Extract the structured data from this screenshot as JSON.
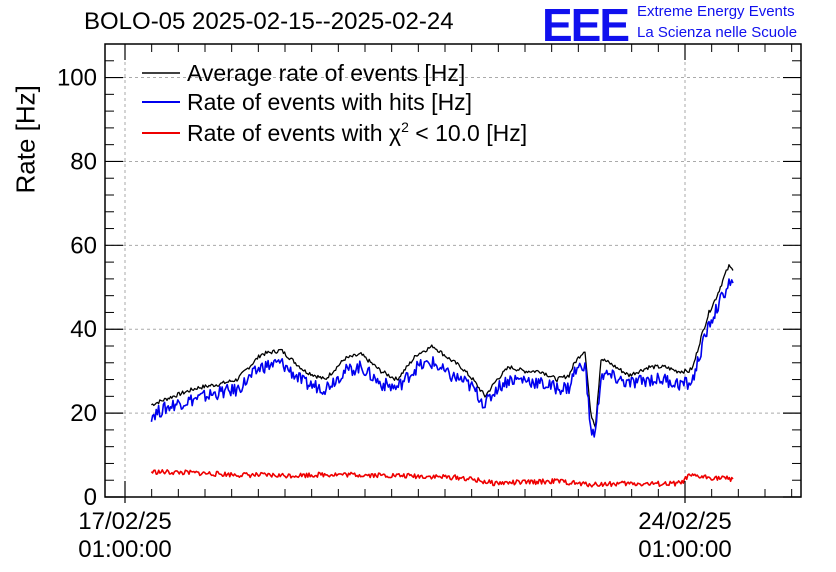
{
  "title": "BOLO-05 2025-02-15--2025-02-24",
  "logo": {
    "mark": "EEE",
    "line1": "Extreme Energy Events",
    "line2": "La Scienza nelle Scuole"
  },
  "chart_data": {
    "type": "line",
    "ylabel": "Rate [Hz]",
    "xlabel": "",
    "ylim": [
      0,
      108
    ],
    "xlim": [
      -0.25,
      8.45
    ],
    "grid": true,
    "legend_position": "top-left",
    "x_tick_labels": [
      {
        "x": 0,
        "line1": "17/02/25",
        "line2": "01:00:00"
      },
      {
        "x": 7,
        "line1": "24/02/25",
        "line2": "01:00:00"
      }
    ],
    "y_ticks": [
      0,
      20,
      40,
      60,
      80,
      100
    ],
    "legend": [
      {
        "text": "Average rate of events [Hz]",
        "color": "#000000"
      },
      {
        "text": "Rate of events with hits [Hz]",
        "color": "#0000ee"
      },
      {
        "text_before": "Rate of events with χ",
        "sup": "2",
        "text_after": " < 10.0 [Hz]",
        "color": "#ee0000"
      }
    ],
    "series": [
      {
        "color": "#000000",
        "x": [
          0.33,
          0.6,
          0.9,
          1.2,
          1.4,
          1.7,
          1.95,
          2.25,
          2.5,
          2.75,
          2.95,
          3.2,
          3.4,
          3.65,
          3.85,
          4.05,
          4.2,
          4.35,
          4.5,
          4.65,
          4.8,
          5.0,
          5.2,
          5.4,
          5.55,
          5.62,
          5.7,
          5.75,
          5.82,
          5.88,
          5.95,
          6.05,
          6.3,
          6.55,
          6.75,
          6.9,
          7.0,
          7.05,
          7.1,
          7.2,
          7.3,
          7.4,
          7.5,
          7.55,
          7.6
        ],
        "y": [
          22,
          24,
          26,
          27,
          28,
          34,
          35,
          30,
          28,
          33,
          34,
          30,
          28,
          34,
          36,
          33,
          31,
          28,
          24,
          28,
          31,
          30,
          30,
          28,
          29,
          32,
          34,
          35,
          20,
          17,
          33,
          32,
          29,
          31,
          31,
          30,
          30,
          30,
          31,
          38,
          44,
          48,
          53,
          55,
          54
        ]
      },
      {
        "color": "#0000ee",
        "x": [
          0.33,
          0.6,
          0.9,
          1.2,
          1.4,
          1.7,
          1.95,
          2.25,
          2.5,
          2.75,
          2.95,
          3.2,
          3.4,
          3.65,
          3.85,
          4.05,
          4.2,
          4.35,
          4.5,
          4.65,
          4.8,
          5.0,
          5.2,
          5.4,
          5.55,
          5.62,
          5.7,
          5.75,
          5.82,
          5.88,
          5.95,
          6.05,
          6.3,
          6.55,
          6.75,
          6.9,
          7.0,
          7.05,
          7.1,
          7.2,
          7.3,
          7.4,
          7.5,
          7.55,
          7.6
        ],
        "y": [
          19.5,
          22,
          23.5,
          25,
          25.5,
          31,
          32,
          27,
          26,
          30,
          31,
          27,
          26,
          31,
          32,
          29,
          28,
          26,
          22,
          26,
          28,
          28,
          27,
          26,
          26,
          30,
          31,
          32,
          16,
          15,
          29,
          29,
          27,
          28,
          28,
          27,
          27,
          27,
          28,
          35,
          41,
          45,
          49,
          51,
          51
        ]
      },
      {
        "color": "#ee0000",
        "x": [
          0.33,
          0.8,
          1.4,
          2.0,
          2.6,
          3.2,
          3.8,
          4.2,
          4.4,
          4.6,
          5.0,
          5.4,
          5.7,
          5.85,
          6.2,
          6.8,
          6.95,
          7.05,
          7.3,
          7.6
        ],
        "y": [
          6,
          5.8,
          5.3,
          5.1,
          5.4,
          5.2,
          4.9,
          4.6,
          4.0,
          3.3,
          3.5,
          3.8,
          3.1,
          3.0,
          3.2,
          3.1,
          3.3,
          5.0,
          4.7,
          4.3
        ]
      }
    ]
  }
}
